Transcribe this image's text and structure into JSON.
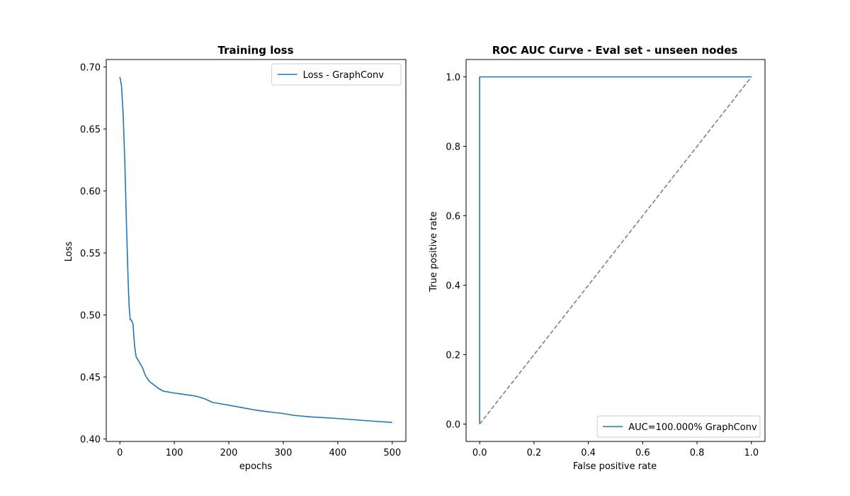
{
  "chart_data": [
    {
      "type": "line",
      "title": "Training loss",
      "xlabel": "epochs",
      "ylabel": "Loss",
      "xlim": [
        -25,
        525
      ],
      "ylim": [
        0.398,
        0.706
      ],
      "xticks": [
        0,
        100,
        200,
        300,
        400,
        500
      ],
      "yticks": [
        0.4,
        0.45,
        0.5,
        0.55,
        0.6,
        0.65,
        0.7
      ],
      "ytick_labels": [
        "0.40",
        "0.45",
        "0.50",
        "0.55",
        "0.60",
        "0.65",
        "0.70"
      ],
      "grid": false,
      "legend_position": "top-right",
      "series": [
        {
          "name": "Loss - GraphConv",
          "color": "#1f77b4",
          "dash": "solid",
          "x": [
            0,
            3,
            6,
            9,
            12,
            15,
            17,
            19,
            21,
            24,
            27,
            30,
            33,
            37,
            42,
            46,
            50,
            55,
            60,
            70,
            80,
            90,
            100,
            120,
            140,
            155,
            170,
            190,
            220,
            250,
            280,
            300,
            320,
            350,
            400,
            430,
            460,
            500
          ],
          "y": [
            0.692,
            0.685,
            0.662,
            0.625,
            0.575,
            0.53,
            0.507,
            0.496,
            0.496,
            0.493,
            0.475,
            0.466,
            0.464,
            0.461,
            0.457,
            0.452,
            0.449,
            0.446,
            0.4445,
            0.441,
            0.4385,
            0.4378,
            0.437,
            0.4358,
            0.4345,
            0.4325,
            0.4295,
            0.428,
            0.4256,
            0.4232,
            0.4215,
            0.4205,
            0.419,
            0.4178,
            0.4165,
            0.4155,
            0.4145,
            0.4133
          ]
        }
      ]
    },
    {
      "type": "line",
      "title": "ROC AUC Curve - Eval set - unseen nodes",
      "xlabel": "False positive rate",
      "ylabel": "True positive rate",
      "xlim": [
        -0.05,
        1.05
      ],
      "ylim": [
        -0.05,
        1.05
      ],
      "xticks": [
        0.0,
        0.2,
        0.4,
        0.6,
        0.8,
        1.0
      ],
      "yticks": [
        0.0,
        0.2,
        0.4,
        0.6,
        0.8,
        1.0
      ],
      "xtick_labels": [
        "0.0",
        "0.2",
        "0.4",
        "0.6",
        "0.8",
        "1.0"
      ],
      "ytick_labels": [
        "0.0",
        "0.2",
        "0.4",
        "0.6",
        "0.8",
        "1.0"
      ],
      "grid": false,
      "legend_position": "bottom-right",
      "series": [
        {
          "name": "AUC=100.000% GraphConv",
          "color": "#1f77b4",
          "dash": "solid",
          "x": [
            0,
            0,
            1
          ],
          "y": [
            0,
            1,
            1
          ]
        },
        {
          "name": "",
          "color": "#808080",
          "dash": "dashed",
          "x": [
            0,
            1
          ],
          "y": [
            0,
            1
          ]
        }
      ]
    }
  ]
}
